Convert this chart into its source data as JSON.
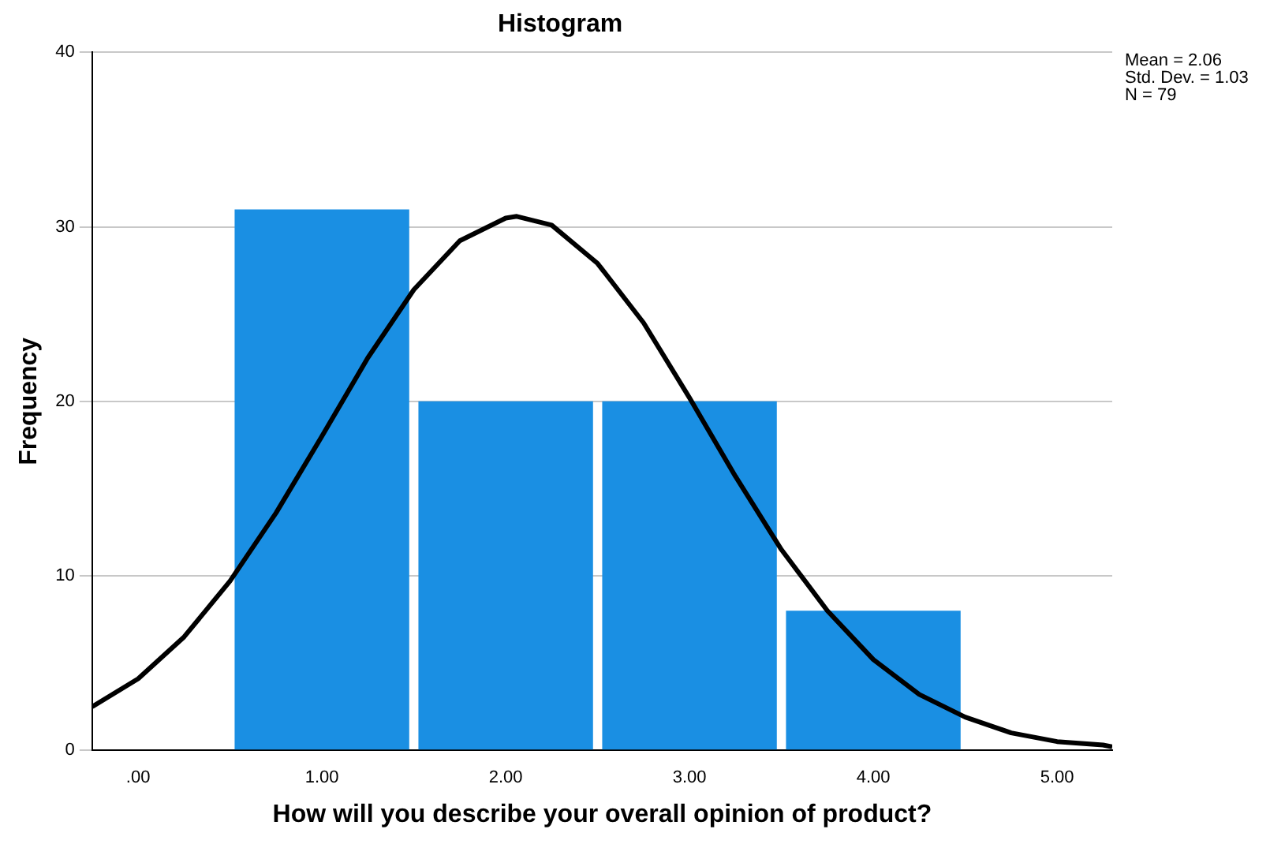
{
  "chart_data": {
    "type": "histogram",
    "title": "Histogram",
    "xlabel": "How will you describe your overall opinion of product?",
    "ylabel": "Frequency",
    "bins": [
      0.5,
      1.5,
      2.5,
      3.5,
      4.5
    ],
    "values": [
      31,
      20,
      20,
      8
    ],
    "color": "#1a8fe3",
    "series": [
      {
        "type": "line",
        "color": "#000000",
        "x": [
          -0.25,
          0,
          0.25,
          0.5,
          0.75,
          1,
          1.25,
          1.5,
          1.75,
          2,
          2.06,
          2.25,
          2.5,
          2.75,
          3,
          3.25,
          3.5,
          3.75,
          4,
          4.25,
          4.5,
          4.75,
          5,
          5.25,
          5.3
        ],
        "values": [
          2.5,
          4.1,
          6.5,
          9.7,
          13.6,
          18,
          22.5,
          26.4,
          29.2,
          30.5,
          30.6,
          30.1,
          27.9,
          24.5,
          20.2,
          15.7,
          11.5,
          8,
          5.2,
          3.2,
          1.9,
          1,
          0.5,
          0.3,
          0.2
        ]
      }
    ],
    "xlim": [
      -0.25,
      5.3
    ],
    "xticks": [
      {
        "value": 0,
        "label": ".00"
      },
      {
        "value": 1,
        "label": "1.00"
      },
      {
        "value": 2,
        "label": "2.00"
      },
      {
        "value": 3,
        "label": "3.00"
      },
      {
        "value": 4,
        "label": "4.00"
      },
      {
        "value": 5,
        "label": "5.00"
      }
    ],
    "ylim": [
      0,
      40
    ],
    "yticks": [
      0,
      10,
      20,
      30,
      40
    ],
    "grid": "y",
    "annotations": [
      "Mean = 2.06",
      "Std. Dev. = 1.03",
      "N = 79"
    ]
  }
}
